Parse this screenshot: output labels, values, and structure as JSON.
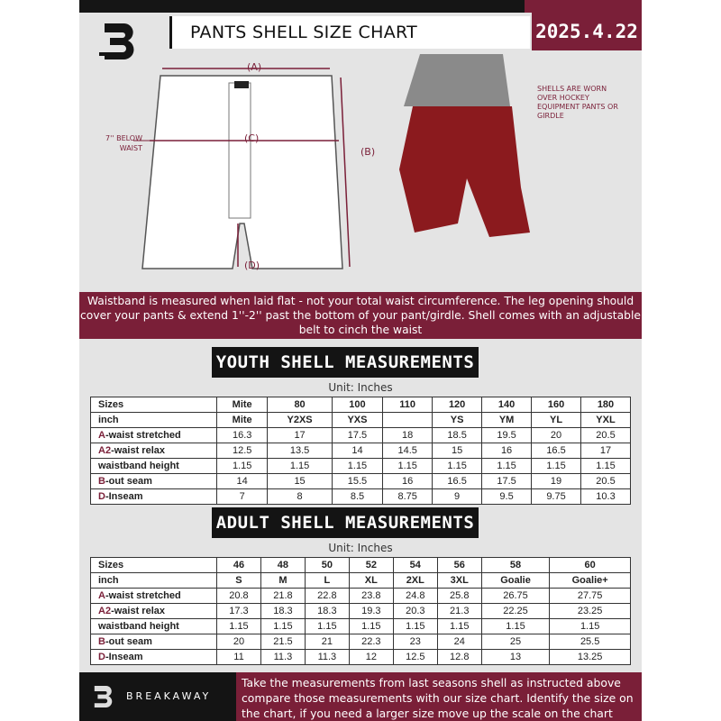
{
  "header": {
    "title": "PANTS SHELL SIZE CHART",
    "date": "2025.4.22",
    "brand": "BREAKAWAY"
  },
  "diagram": {
    "label_a": "(A)",
    "label_b": "(B)",
    "label_c": "(C)",
    "label_d": "(D)",
    "note_waist": "7'' BELOW WAIST",
    "note_shells": "SHELLS ARE WORN OVER HOCKEY EQUIPMENT PANTS OR GIRDLE"
  },
  "banner": "Waistband is measured when laid flat - not your total waist circumference. The leg opening should cover your pants & extend 1''-2'' past the bottom of your pant/girdle. Shell comes with an adjustable belt to cinch the waist",
  "youth": {
    "title": "YOUTH SHELL MEASUREMENTS",
    "unit": "Unit: Inches",
    "rows": [
      {
        "prefix": "",
        "label": "Sizes",
        "values": [
          "Mite",
          "80",
          "100",
          "110",
          "120",
          "140",
          "160",
          "180"
        ]
      },
      {
        "prefix": "",
        "label": "inch",
        "values": [
          "Mite",
          "Y2XS",
          "YXS",
          "",
          "YS",
          "YM",
          "YL",
          "YXL"
        ]
      },
      {
        "prefix": "A",
        "label": "-waist stretched",
        "values": [
          "16.3",
          "17",
          "17.5",
          "18",
          "18.5",
          "19.5",
          "20",
          "20.5"
        ]
      },
      {
        "prefix": "A2",
        "label": "-waist relax",
        "values": [
          "12.5",
          "13.5",
          "14",
          "14.5",
          "15",
          "16",
          "16.5",
          "17"
        ]
      },
      {
        "prefix": "",
        "label": "waistband height",
        "values": [
          "1.15",
          "1.15",
          "1.15",
          "1.15",
          "1.15",
          "1.15",
          "1.15",
          "1.15"
        ]
      },
      {
        "prefix": "B",
        "label": "-out seam",
        "values": [
          "14",
          "15",
          "15.5",
          "16",
          "16.5",
          "17.5",
          "19",
          "20.5"
        ]
      },
      {
        "prefix": "D",
        "label": "-Inseam",
        "values": [
          "7",
          "8",
          "8.5",
          "8.75",
          "9",
          "9.5",
          "9.75",
          "10.3"
        ]
      }
    ]
  },
  "adult": {
    "title": "ADULT SHELL MEASUREMENTS",
    "unit": "Unit: Inches",
    "rows": [
      {
        "prefix": "",
        "label": "Sizes",
        "values": [
          "46",
          "48",
          "50",
          "52",
          "54",
          "56",
          "58",
          "60"
        ]
      },
      {
        "prefix": "",
        "label": "inch",
        "values": [
          "S",
          "M",
          "L",
          "XL",
          "2XL",
          "3XL",
          "Goalie",
          "Goalie+"
        ]
      },
      {
        "prefix": "A",
        "label": "-waist stretched",
        "values": [
          "20.8",
          "21.8",
          "22.8",
          "23.8",
          "24.8",
          "25.8",
          "26.75",
          "27.75"
        ]
      },
      {
        "prefix": "A2",
        "label": "-waist relax",
        "values": [
          "17.3",
          "18.3",
          "18.3",
          "19.3",
          "20.3",
          "21.3",
          "22.25",
          "23.25"
        ]
      },
      {
        "prefix": "",
        "label": "waistband height",
        "values": [
          "1.15",
          "1.15",
          "1.15",
          "1.15",
          "1.15",
          "1.15",
          "1.15",
          "1.15"
        ]
      },
      {
        "prefix": "B",
        "label": "-out seam",
        "values": [
          "20",
          "21.5",
          "21",
          "22.3",
          "23",
          "24",
          "25",
          "25.5"
        ]
      },
      {
        "prefix": "D",
        "label": "-Inseam",
        "values": [
          "11",
          "11.3",
          "11.3",
          "12",
          "12.5",
          "12.8",
          "13",
          "13.25"
        ]
      }
    ]
  },
  "footer": "Take the measurements from last seasons shell as instructed above compare those measurements  with our size chart. Identify the size on the chart, if you need a larger size move up the scale on the chart",
  "colors": {
    "accent": "#7a1f38",
    "dark": "#141414",
    "background": "#e4e4e4"
  }
}
